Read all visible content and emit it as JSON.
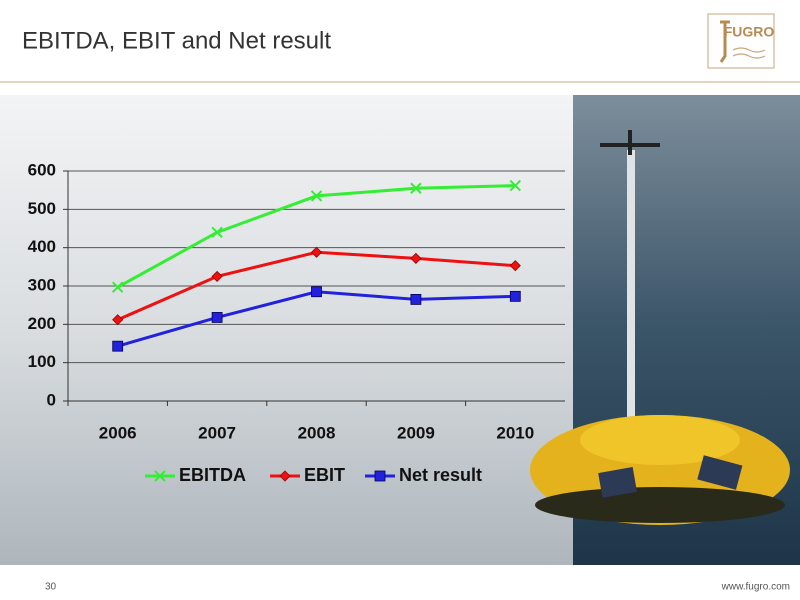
{
  "slide": {
    "logo": "FUGRO",
    "number": 30,
    "footer": "www.fugro.com"
  },
  "chart_data": {
    "type": "line",
    "title": "EBITDA, EBIT and Net result",
    "categories": [
      "2006",
      "2007",
      "2008",
      "2009",
      "2010"
    ],
    "series": [
      {
        "name": "EBITDA",
        "color": "#33ee33",
        "marker": "x",
        "values": [
          297,
          440,
          535,
          555,
          562
        ]
      },
      {
        "name": "EBIT",
        "color": "#ee1111",
        "marker": "diamond",
        "values": [
          212,
          325,
          388,
          372,
          353
        ]
      },
      {
        "name": "Net result",
        "color": "#2222dd",
        "marker": "square",
        "values": [
          143,
          218,
          285,
          265,
          273
        ]
      }
    ],
    "ylim": [
      0,
      600
    ],
    "yticks": [
      0,
      100,
      200,
      300,
      400,
      500,
      600
    ],
    "grid": true,
    "legend": "bottom"
  }
}
